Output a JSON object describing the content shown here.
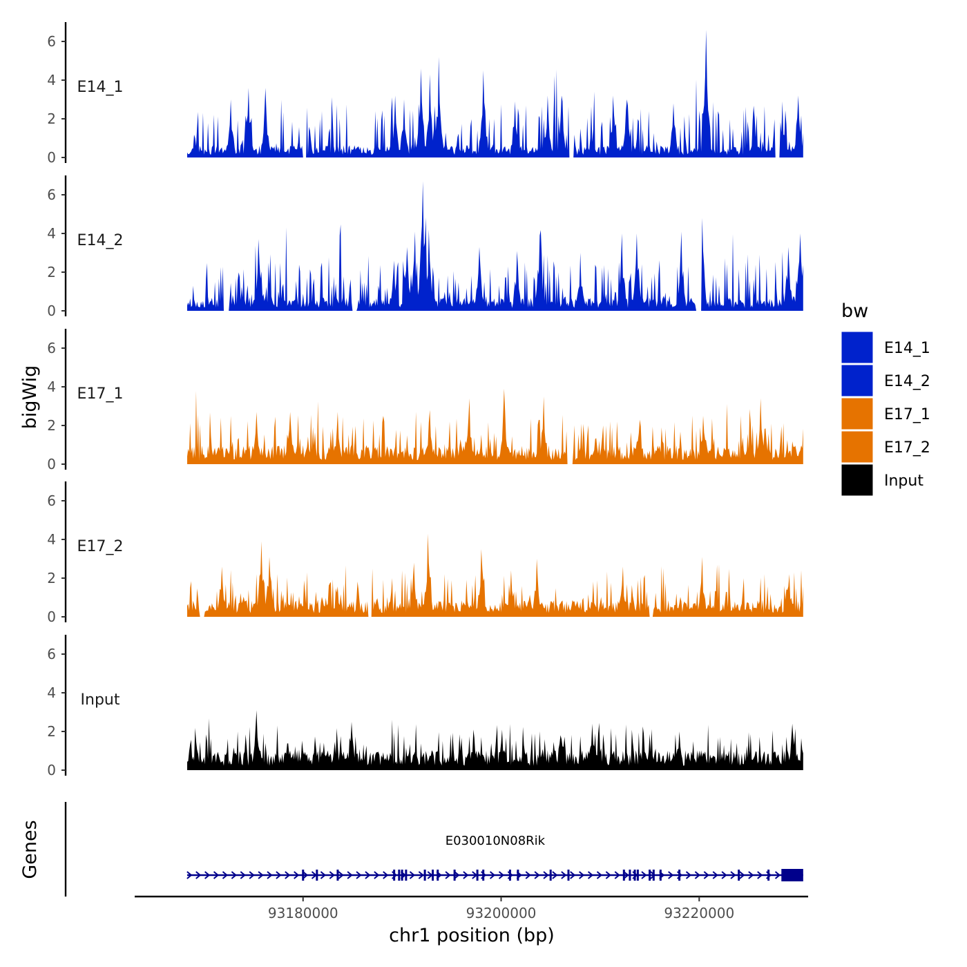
{
  "chart_data": {
    "type": "area",
    "chromosome": "chr1",
    "xlabel": "chr1 position (bp)",
    "ylabel": "bigWig",
    "gene_panel_label": "Genes",
    "xlim": [
      93163000,
      93231000
    ],
    "signal_range": [
      93168300,
      93230500
    ],
    "ylim": [
      0,
      7
    ],
    "x_ticks": [
      93180000,
      93200000,
      93220000
    ],
    "x_tick_labels": [
      "93180000",
      "93200000",
      "93220000"
    ],
    "y_ticks": [
      0,
      2,
      4,
      6
    ],
    "y_tick_labels": [
      "0",
      "2",
      "4",
      "6"
    ],
    "legend": {
      "title": "bw",
      "entries": [
        {
          "name": "E14_1",
          "color": "#0022CC"
        },
        {
          "name": "E14_2",
          "color": "#0022CC"
        },
        {
          "name": "E17_1",
          "color": "#E67300"
        },
        {
          "name": "E17_2",
          "color": "#E67300"
        },
        {
          "name": "Input",
          "color": "#000000"
        }
      ]
    },
    "series": [
      {
        "name": "E14_1",
        "color": "#0022CC",
        "seed": 11,
        "baseline": 0.55,
        "noise": 1.6,
        "gaps": [
          [
            93180000,
            93180300
          ],
          [
            93206900,
            93207300
          ],
          [
            93227700,
            93228100
          ]
        ],
        "peaks": [
          [
            93172700,
            3.0
          ],
          [
            93174500,
            3.6
          ],
          [
            93176200,
            3.6
          ],
          [
            93189300,
            3.2
          ],
          [
            93190200,
            3.0
          ],
          [
            93191900,
            4.6
          ],
          [
            93192800,
            4.3
          ],
          [
            93193700,
            5.2
          ],
          [
            93198200,
            4.5
          ],
          [
            93201400,
            2.9
          ],
          [
            93204700,
            3.2
          ],
          [
            93206100,
            3.2
          ],
          [
            93211300,
            3.2
          ],
          [
            93212700,
            3.0
          ],
          [
            93217400,
            2.8
          ],
          [
            93220700,
            6.6
          ],
          [
            93228400,
            2.8
          ],
          [
            93230000,
            3.2
          ]
        ]
      },
      {
        "name": "E14_2",
        "color": "#0022CC",
        "seed": 23,
        "baseline": 0.6,
        "noise": 1.5,
        "gaps": [
          [
            93172000,
            93172500
          ],
          [
            93185000,
            93185400
          ],
          [
            93219700,
            93220200
          ]
        ],
        "peaks": [
          [
            93175500,
            3.7
          ],
          [
            93189200,
            2.6
          ],
          [
            93190500,
            3.3
          ],
          [
            93191300,
            4.1
          ],
          [
            93192100,
            6.7
          ],
          [
            93192700,
            4.2
          ],
          [
            93197800,
            3.3
          ],
          [
            93201600,
            3.1
          ],
          [
            93203900,
            3.9
          ],
          [
            93208000,
            3.0
          ],
          [
            93212200,
            4.0
          ],
          [
            93213700,
            4.0
          ],
          [
            93218200,
            4.1
          ],
          [
            93220300,
            4.8
          ],
          [
            93229000,
            3.3
          ],
          [
            93230200,
            4.0
          ]
        ]
      },
      {
        "name": "E17_1",
        "color": "#E67300",
        "seed": 37,
        "baseline": 0.85,
        "noise": 1.2,
        "gaps": [
          [
            93206700,
            93207200
          ]
        ],
        "peaks": [
          [
            93175300,
            2.7
          ],
          [
            93178700,
            2.7
          ],
          [
            93183500,
            2.7
          ],
          [
            93192800,
            2.8
          ],
          [
            93196800,
            3.4
          ],
          [
            93200300,
            3.9
          ],
          [
            93204300,
            3.5
          ],
          [
            93210300,
            2.0
          ],
          [
            93214000,
            2.3
          ],
          [
            93220400,
            2.5
          ],
          [
            93226200,
            3.4
          ]
        ]
      },
      {
        "name": "E17_2",
        "color": "#E67300",
        "seed": 53,
        "baseline": 0.75,
        "noise": 1.2,
        "gaps": [
          [
            93169600,
            93170000
          ],
          [
            93186600,
            93186900
          ],
          [
            93215000,
            93215300
          ]
        ],
        "peaks": [
          [
            93171800,
            2.6
          ],
          [
            93175800,
            3.9
          ],
          [
            93176600,
            3.1
          ],
          [
            93191200,
            2.8
          ],
          [
            93192600,
            4.3
          ],
          [
            93198000,
            3.5
          ],
          [
            93201000,
            2.4
          ],
          [
            93203600,
            3.0
          ],
          [
            93212300,
            2.6
          ],
          [
            93220300,
            3.1
          ],
          [
            93229100,
            2.2
          ]
        ]
      },
      {
        "name": "Input",
        "color": "#000000",
        "seed": 71,
        "baseline": 0.9,
        "noise": 1.0,
        "gaps": [],
        "peaks": [
          [
            93175300,
            3.1
          ],
          [
            93184900,
            2.5
          ],
          [
            93197200,
            2.1
          ],
          [
            93200100,
            2.1
          ],
          [
            93209200,
            2.4
          ],
          [
            93218000,
            2.0
          ],
          [
            93229400,
            2.4
          ]
        ]
      }
    ],
    "gene": {
      "name": "E030010N08Rik",
      "color": "#00008B",
      "start": 93168300,
      "end": 93230500,
      "strand": "+",
      "exon_ticks": [
        93180000,
        93181400,
        93183500,
        93189200,
        93189700,
        93190000,
        93190400,
        93192300,
        93193100,
        93193600,
        93195300,
        93197600,
        93198200,
        93200900,
        93201700,
        93205000,
        93206800,
        93212400,
        93213000,
        93213500,
        93213800,
        93215000,
        93215400,
        93216100,
        93218000,
        93224000,
        93227000
      ],
      "terminal_exon": [
        93228300,
        93230500
      ]
    }
  }
}
